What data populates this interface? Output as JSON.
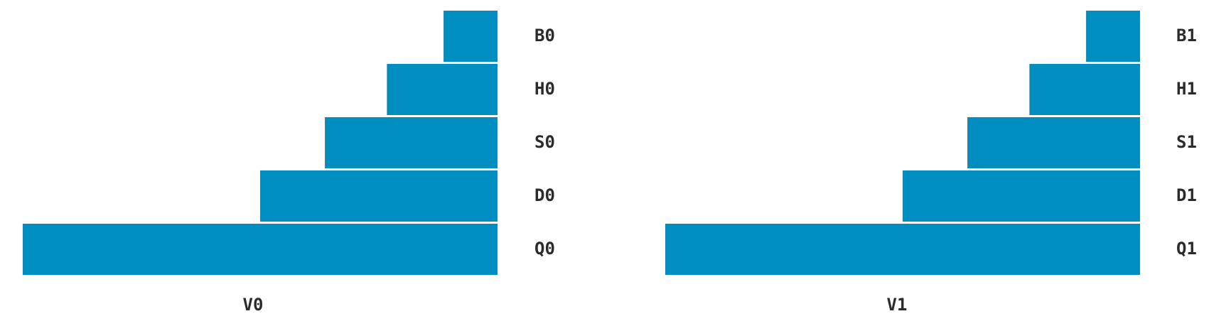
{
  "chart_data": [
    {
      "type": "bar",
      "orientation": "horizontal",
      "xlabel": "V0",
      "categories": [
        "B0",
        "H0",
        "S0",
        "D0",
        "Q0"
      ],
      "values": [
        1,
        2.05,
        3.2,
        4.4,
        8.8
      ],
      "xlim": [
        0,
        8.8
      ],
      "bar_color": "#008dc0",
      "label_side": "right",
      "grid": false
    },
    {
      "type": "bar",
      "orientation": "horizontal",
      "xlabel": "V1",
      "categories": [
        "B1",
        "H1",
        "S1",
        "D1",
        "Q1"
      ],
      "values": [
        1,
        2.05,
        3.2,
        4.4,
        8.8
      ],
      "xlim": [
        0,
        8.8
      ],
      "bar_color": "#008dc0",
      "label_side": "right",
      "grid": false
    }
  ]
}
